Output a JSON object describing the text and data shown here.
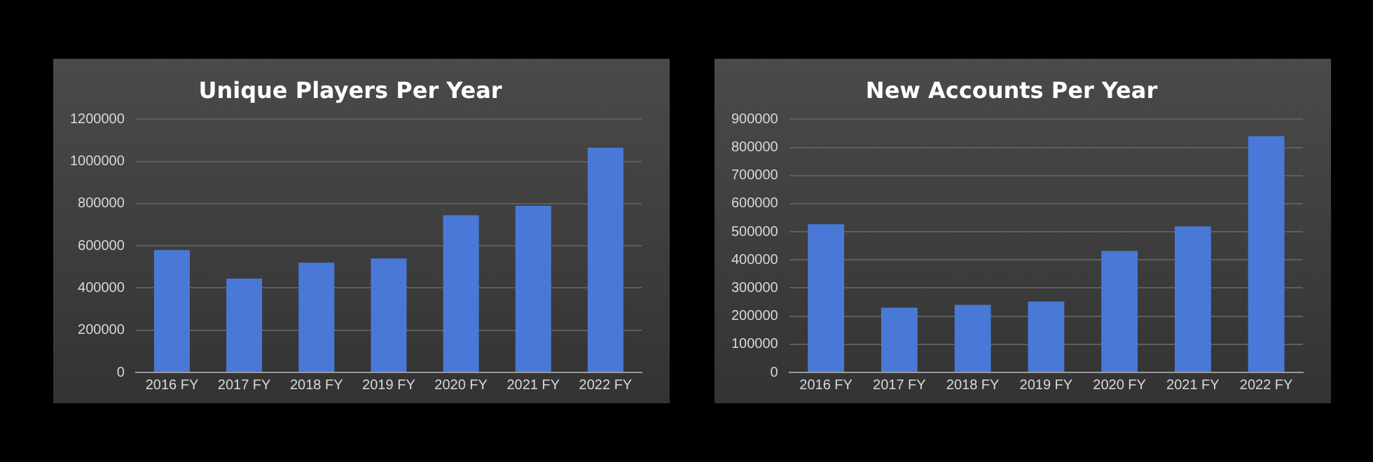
{
  "chart_data": [
    {
      "type": "bar",
      "title": "Unique Players Per Year",
      "categories": [
        "2016 FY",
        "2017 FY",
        "2018 FY",
        "2019 FY",
        "2020 FY",
        "2021 FY",
        "2022 FY"
      ],
      "values": [
        580000,
        445000,
        520000,
        540000,
        745000,
        790000,
        1065000
      ],
      "color": "#4a78d6",
      "ylim": [
        0,
        1200000
      ],
      "yticks": [
        0,
        200000,
        400000,
        600000,
        800000,
        1000000,
        1200000
      ],
      "grid": "y",
      "legend": false
    },
    {
      "type": "bar",
      "title": "New Accounts Per Year",
      "categories": [
        "2016 FY",
        "2017 FY",
        "2018 FY",
        "2019 FY",
        "2020 FY",
        "2021 FY",
        "2022 FY"
      ],
      "values": [
        527000,
        230000,
        240000,
        252000,
        432000,
        519000,
        840000
      ],
      "color": "#4a78d6",
      "ylim": [
        0,
        900000
      ],
      "yticks": [
        0,
        100000,
        200000,
        300000,
        400000,
        500000,
        600000,
        700000,
        800000,
        900000
      ],
      "grid": "y",
      "legend": false
    }
  ]
}
